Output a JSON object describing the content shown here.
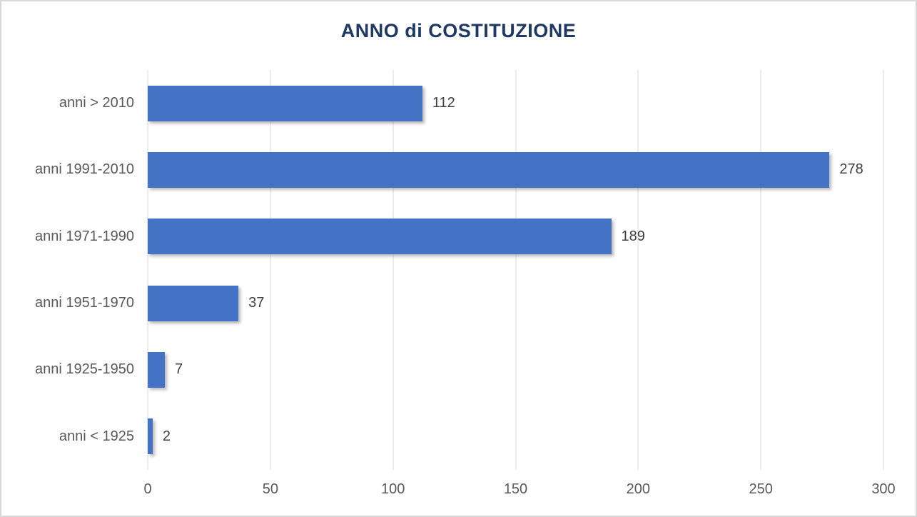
{
  "chart_data": {
    "type": "bar",
    "orientation": "horizontal",
    "title": "ANNO di COSTITUZIONE",
    "categories": [
      "anni > 2010",
      "anni 1991-2010",
      "anni 1971-1990",
      "anni 1951-1970",
      "anni 1925-1950",
      "anni < 1925"
    ],
    "values": [
      112,
      278,
      189,
      37,
      7,
      2
    ],
    "data_labels": [
      112,
      278,
      189,
      37,
      7,
      2
    ],
    "xlabel": "",
    "ylabel": "",
    "xlim": [
      0,
      300
    ],
    "xticks": [
      0,
      50,
      100,
      150,
      200,
      250,
      300
    ],
    "grid": true,
    "legend": "none"
  },
  "colors": {
    "bar": "#4472c4",
    "title": "#1f3864",
    "gridline": "#d9d9d9",
    "axis_text": "#595959",
    "value_text": "#404040",
    "frame_border": "#d9d9d9",
    "background": "#ffffff"
  }
}
